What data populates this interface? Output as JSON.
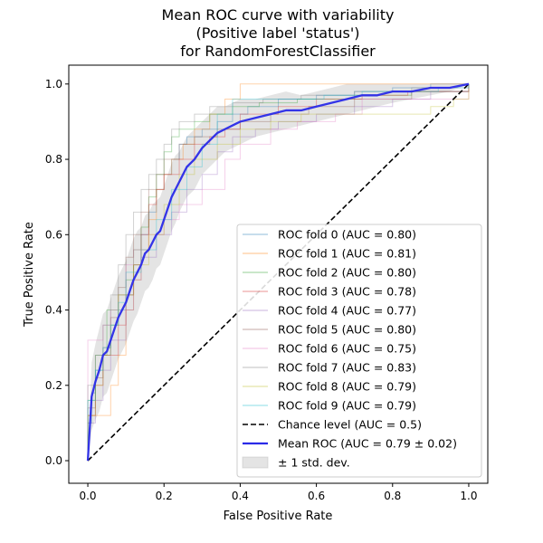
{
  "chart_data": {
    "type": "line",
    "title": [
      "Mean ROC curve with variability",
      "(Positive label 'status')",
      "for RandomForestClassifier"
    ],
    "xlabel": "False Positive Rate",
    "ylabel": "True Positive Rate",
    "xlim": [
      -0.05,
      1.05
    ],
    "ylim": [
      -0.06,
      1.05
    ],
    "xticks": [
      0.0,
      0.2,
      0.4,
      0.6,
      0.8,
      1.0
    ],
    "xtick_labels": [
      "0.0",
      "0.2",
      "0.4",
      "0.6",
      "0.8",
      "1.0"
    ],
    "yticks": [
      0.0,
      0.2,
      0.4,
      0.6,
      0.8,
      1.0
    ],
    "ytick_labels": [
      "0.0",
      "0.2",
      "0.4",
      "0.6",
      "0.8",
      "1.0"
    ],
    "legend_position": "lower-right",
    "folds": [
      {
        "name": "ROC fold 0 (AUC = 0.80)",
        "color": "#1f77b4",
        "x": [
          0,
          0,
          0.01,
          0.02,
          0.04,
          0.06,
          0.08,
          0.1,
          0.12,
          0.14,
          0.16,
          0.18,
          0.2,
          0.22,
          0.24,
          0.26,
          0.3,
          0.34,
          0.38,
          0.42,
          0.5,
          0.6,
          0.7,
          0.8,
          0.9,
          1.0
        ],
        "y": [
          0,
          0.1,
          0.18,
          0.24,
          0.28,
          0.36,
          0.4,
          0.44,
          0.52,
          0.6,
          0.66,
          0.72,
          0.76,
          0.8,
          0.84,
          0.86,
          0.88,
          0.9,
          0.92,
          0.94,
          0.96,
          0.97,
          0.98,
          0.99,
          1.0,
          1.0
        ]
      },
      {
        "name": "ROC fold 1 (AUC = 0.81)",
        "color": "#ff7f0e",
        "x": [
          0,
          0,
          0.03,
          0.06,
          0.08,
          0.1,
          0.12,
          0.14,
          0.16,
          0.18,
          0.2,
          0.22,
          0.25,
          0.28,
          0.32,
          0.36,
          0.4,
          0.5,
          0.6,
          0.8,
          1.0
        ],
        "y": [
          0,
          0.12,
          0.12,
          0.2,
          0.28,
          0.4,
          0.48,
          0.56,
          0.64,
          0.72,
          0.76,
          0.8,
          0.84,
          0.88,
          0.92,
          0.96,
          1.0,
          1.0,
          1.0,
          1.0,
          1.0
        ]
      },
      {
        "name": "ROC fold 2 (AUC = 0.80)",
        "color": "#2ca02c",
        "x": [
          0,
          0,
          0.02,
          0.05,
          0.08,
          0.1,
          0.12,
          0.14,
          0.16,
          0.18,
          0.2,
          0.22,
          0.24,
          0.28,
          0.32,
          0.38,
          0.45,
          0.55,
          0.7,
          0.85,
          1.0
        ],
        "y": [
          0,
          0.16,
          0.28,
          0.4,
          0.44,
          0.48,
          0.56,
          0.62,
          0.7,
          0.76,
          0.82,
          0.86,
          0.88,
          0.9,
          0.92,
          0.94,
          0.95,
          0.96,
          0.97,
          0.98,
          1.0
        ]
      },
      {
        "name": "ROC fold 3 (AUC = 0.78)",
        "color": "#d62728",
        "x": [
          0,
          0,
          0.02,
          0.04,
          0.08,
          0.1,
          0.12,
          0.14,
          0.16,
          0.18,
          0.2,
          0.24,
          0.28,
          0.32,
          0.36,
          0.4,
          0.5,
          0.6,
          0.72,
          0.84,
          1.0
        ],
        "y": [
          0,
          0.12,
          0.2,
          0.28,
          0.36,
          0.44,
          0.52,
          0.6,
          0.68,
          0.72,
          0.76,
          0.8,
          0.84,
          0.86,
          0.88,
          0.92,
          0.94,
          0.96,
          0.97,
          0.98,
          1.0
        ]
      },
      {
        "name": "ROC fold 4 (AUC = 0.77)",
        "color": "#9467bd",
        "x": [
          0,
          0,
          0.02,
          0.04,
          0.06,
          0.1,
          0.12,
          0.14,
          0.18,
          0.22,
          0.26,
          0.3,
          0.34,
          0.38,
          0.44,
          0.5,
          0.6,
          0.7,
          0.8,
          0.9,
          1.0
        ],
        "y": [
          0,
          0.1,
          0.16,
          0.24,
          0.32,
          0.4,
          0.48,
          0.54,
          0.6,
          0.66,
          0.72,
          0.76,
          0.82,
          0.86,
          0.88,
          0.9,
          0.92,
          0.94,
          0.96,
          0.98,
          1.0
        ]
      },
      {
        "name": "ROC fold 5 (AUC = 0.80)",
        "color": "#8c564b",
        "x": [
          0,
          0,
          0.02,
          0.04,
          0.06,
          0.08,
          0.1,
          0.12,
          0.14,
          0.16,
          0.18,
          0.2,
          0.24,
          0.28,
          0.34,
          0.4,
          0.48,
          0.58,
          0.7,
          0.85,
          1.0
        ],
        "y": [
          0,
          0.14,
          0.22,
          0.3,
          0.38,
          0.46,
          0.54,
          0.6,
          0.66,
          0.72,
          0.76,
          0.8,
          0.84,
          0.86,
          0.88,
          0.9,
          0.92,
          0.94,
          0.96,
          0.98,
          1.0
        ]
      },
      {
        "name": "ROC fold 6 (AUC = 0.75)",
        "color": "#e377c2",
        "x": [
          0,
          0,
          0.02,
          0.04,
          0.06,
          0.08,
          0.1,
          0.12,
          0.16,
          0.2,
          0.24,
          0.3,
          0.36,
          0.4,
          0.48,
          0.55,
          0.65,
          0.72,
          0.82,
          0.92,
          1.0
        ],
        "y": [
          0,
          0.32,
          0.32,
          0.36,
          0.4,
          0.44,
          0.52,
          0.56,
          0.6,
          0.64,
          0.68,
          0.72,
          0.8,
          0.84,
          0.88,
          0.9,
          0.92,
          0.96,
          0.96,
          0.96,
          1.0
        ]
      },
      {
        "name": "ROC fold 7 (AUC = 0.83)",
        "color": "#7f7f7f",
        "x": [
          0,
          0,
          0.02,
          0.04,
          0.06,
          0.08,
          0.1,
          0.12,
          0.14,
          0.16,
          0.18,
          0.2,
          0.22,
          0.24,
          0.28,
          0.32,
          0.38,
          0.46,
          0.56,
          0.7,
          0.85,
          1.0
        ],
        "y": [
          0,
          0.2,
          0.28,
          0.36,
          0.44,
          0.52,
          0.6,
          0.66,
          0.72,
          0.76,
          0.8,
          0.84,
          0.88,
          0.9,
          0.92,
          0.94,
          0.95,
          0.96,
          0.97,
          0.98,
          0.99,
          1.0
        ]
      },
      {
        "name": "ROC fold 8 (AUC = 0.79)",
        "color": "#bcbd22",
        "x": [
          0,
          0,
          0.02,
          0.04,
          0.06,
          0.08,
          0.12,
          0.16,
          0.2,
          0.24,
          0.28,
          0.34,
          0.4,
          0.48,
          0.56,
          0.66,
          0.76,
          0.82,
          0.9,
          0.96,
          1.0
        ],
        "y": [
          0,
          0.12,
          0.2,
          0.28,
          0.36,
          0.44,
          0.52,
          0.6,
          0.68,
          0.76,
          0.8,
          0.84,
          0.88,
          0.9,
          0.92,
          0.92,
          0.92,
          0.92,
          0.94,
          0.96,
          1.0
        ]
      },
      {
        "name": "ROC fold 9 (AUC = 0.79)",
        "color": "#17becf",
        "x": [
          0,
          0,
          0.02,
          0.04,
          0.06,
          0.08,
          0.1,
          0.14,
          0.18,
          0.22,
          0.26,
          0.3,
          0.34,
          0.38,
          0.44,
          0.52,
          0.62,
          0.72,
          0.82,
          0.92,
          1.0
        ],
        "y": [
          0,
          0.16,
          0.24,
          0.3,
          0.36,
          0.42,
          0.5,
          0.56,
          0.64,
          0.72,
          0.78,
          0.84,
          0.92,
          0.96,
          0.96,
          0.96,
          0.97,
          0.98,
          0.98,
          0.99,
          1.0
        ]
      }
    ],
    "chance": {
      "name": "Chance level (AUC = 0.5)",
      "color": "#000000",
      "x": [
        0,
        1
      ],
      "y": [
        0,
        1
      ]
    },
    "mean": {
      "name": "Mean ROC (AUC = 0.79 ± 0.02)",
      "color": "#2a2ae8",
      "x": [
        0,
        0.01,
        0.02,
        0.03,
        0.04,
        0.05,
        0.06,
        0.07,
        0.08,
        0.09,
        0.1,
        0.11,
        0.12,
        0.13,
        0.14,
        0.15,
        0.16,
        0.17,
        0.18,
        0.19,
        0.2,
        0.21,
        0.22,
        0.23,
        0.24,
        0.25,
        0.26,
        0.28,
        0.3,
        0.32,
        0.34,
        0.36,
        0.38,
        0.4,
        0.44,
        0.48,
        0.52,
        0.56,
        0.6,
        0.64,
        0.68,
        0.72,
        0.76,
        0.8,
        0.85,
        0.9,
        0.95,
        1.0
      ],
      "y": [
        0,
        0.17,
        0.21,
        0.24,
        0.28,
        0.29,
        0.32,
        0.35,
        0.38,
        0.4,
        0.42,
        0.45,
        0.48,
        0.5,
        0.52,
        0.55,
        0.56,
        0.58,
        0.6,
        0.61,
        0.64,
        0.67,
        0.7,
        0.72,
        0.74,
        0.76,
        0.78,
        0.8,
        0.83,
        0.85,
        0.87,
        0.88,
        0.89,
        0.9,
        0.91,
        0.92,
        0.93,
        0.93,
        0.94,
        0.95,
        0.96,
        0.97,
        0.97,
        0.98,
        0.98,
        0.99,
        0.99,
        1.0
      ]
    },
    "std_band": {
      "name": "± 1 std. dev.",
      "color": "#b3b3b3",
      "x": [
        0,
        0.01,
        0.02,
        0.03,
        0.04,
        0.05,
        0.06,
        0.07,
        0.08,
        0.09,
        0.1,
        0.11,
        0.12,
        0.13,
        0.14,
        0.15,
        0.16,
        0.17,
        0.18,
        0.19,
        0.2,
        0.21,
        0.22,
        0.23,
        0.24,
        0.25,
        0.26,
        0.28,
        0.3,
        0.32,
        0.34,
        0.36,
        0.38,
        0.4,
        0.44,
        0.48,
        0.52,
        0.56,
        0.6,
        0.64,
        0.68,
        0.72,
        0.76,
        0.8,
        0.85,
        0.9,
        0.95,
        1.0
      ],
      "lower": [
        0,
        0.08,
        0.11,
        0.13,
        0.17,
        0.18,
        0.21,
        0.24,
        0.27,
        0.29,
        0.31,
        0.34,
        0.37,
        0.39,
        0.42,
        0.45,
        0.46,
        0.48,
        0.51,
        0.52,
        0.55,
        0.58,
        0.61,
        0.63,
        0.66,
        0.68,
        0.7,
        0.72,
        0.76,
        0.78,
        0.8,
        0.82,
        0.83,
        0.84,
        0.86,
        0.87,
        0.88,
        0.89,
        0.9,
        0.91,
        0.92,
        0.93,
        0.94,
        0.95,
        0.96,
        0.97,
        0.98,
        1.0
      ],
      "upper": [
        0,
        0.26,
        0.31,
        0.35,
        0.39,
        0.4,
        0.43,
        0.46,
        0.49,
        0.51,
        0.53,
        0.56,
        0.59,
        0.61,
        0.62,
        0.65,
        0.66,
        0.68,
        0.69,
        0.7,
        0.73,
        0.76,
        0.79,
        0.81,
        0.82,
        0.84,
        0.86,
        0.88,
        0.9,
        0.92,
        0.94,
        0.94,
        0.95,
        0.96,
        0.96,
        0.97,
        0.98,
        0.97,
        0.98,
        0.99,
        1.0,
        1.0,
        1.0,
        1.0,
        1.0,
        1.0,
        1.0,
        1.0
      ]
    }
  }
}
